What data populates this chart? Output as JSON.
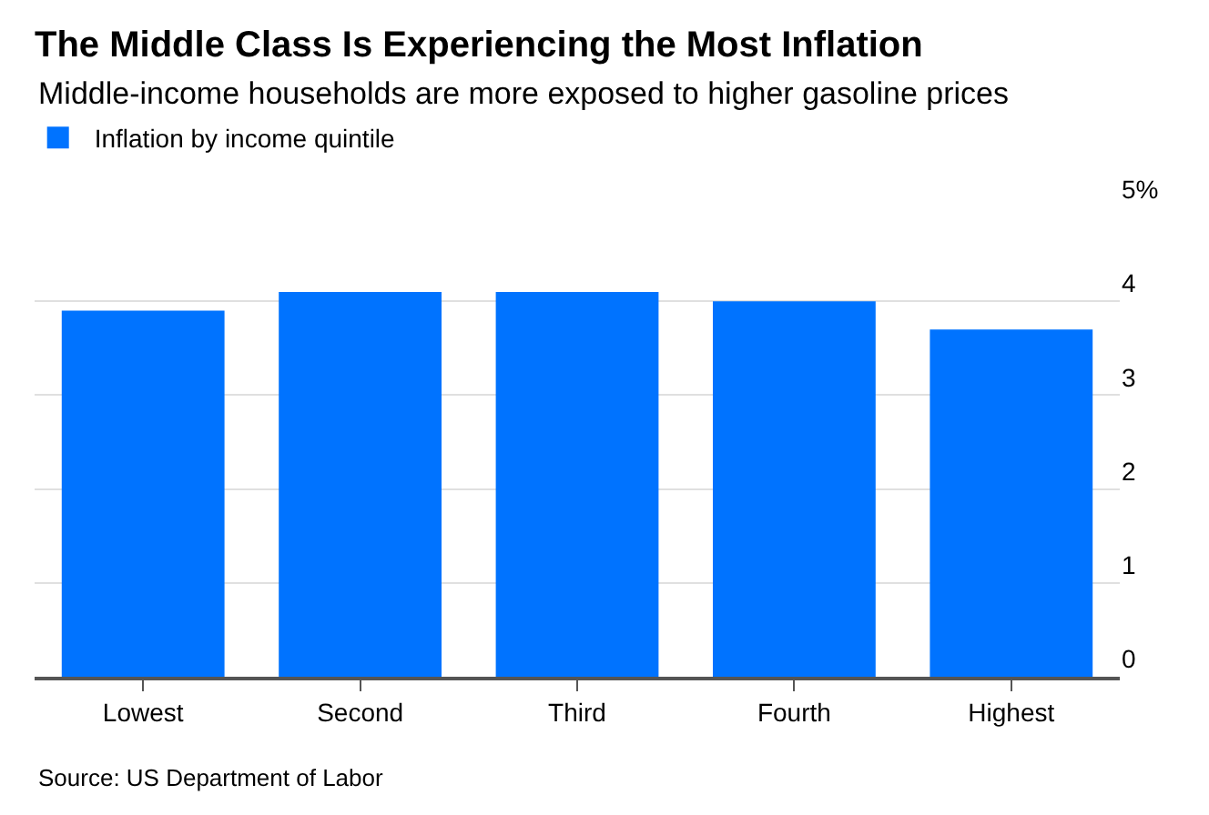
{
  "chart_data": {
    "type": "bar",
    "title": "The Middle Class Is Experiencing the Most Inflation",
    "subtitle": "Middle-income households are more exposed to higher gasoline prices",
    "categories": [
      "Lowest",
      "Second",
      "Third",
      "Fourth",
      "Highest"
    ],
    "series": [
      {
        "name": "Inflation by income quintile",
        "color": "#0073ff",
        "values": [
          3.9,
          4.1,
          4.1,
          4.0,
          3.7
        ]
      }
    ],
    "ylim": [
      0,
      5
    ],
    "yticks": [
      0,
      1,
      2,
      3,
      4,
      {
        "value": 5,
        "label": "5%"
      }
    ],
    "grid": "y",
    "legend": "top left",
    "annotations": [
      "Source: US Department of Labor"
    ]
  }
}
